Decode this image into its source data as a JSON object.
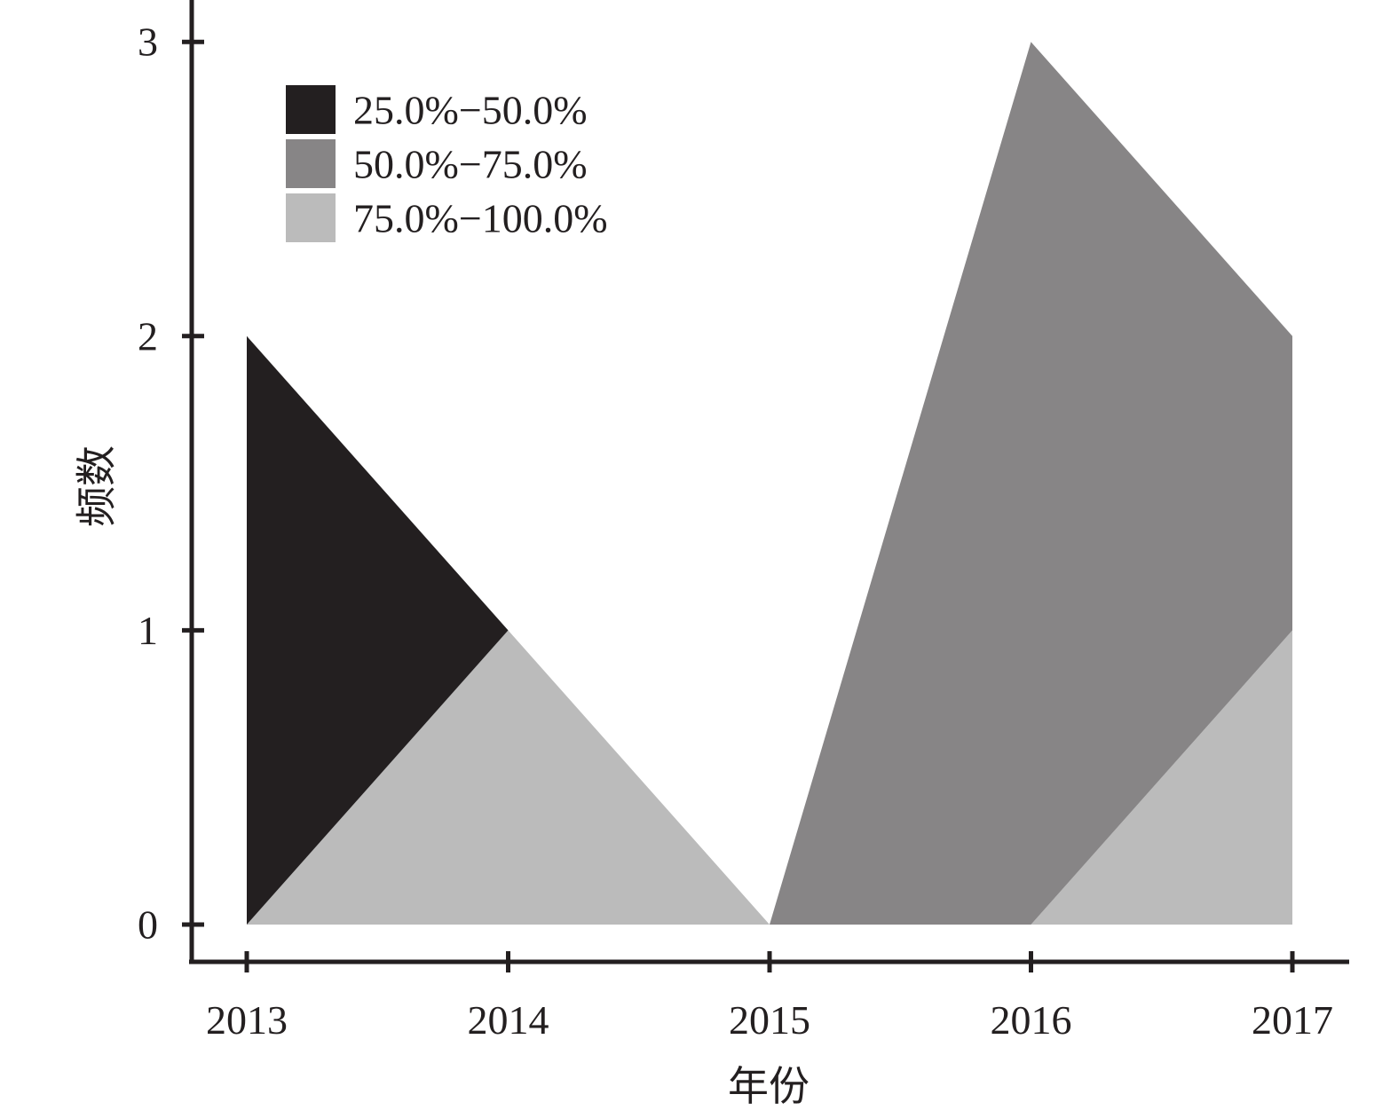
{
  "chart_data": {
    "type": "area",
    "categories": [
      "2013",
      "2014",
      "2015",
      "2016",
      "2017"
    ],
    "series": [
      {
        "name": "25.0%−50.0%",
        "values": [
          2,
          0,
          0,
          0,
          0
        ],
        "color": "#231f20"
      },
      {
        "name": "50.0%−75.0%",
        "values": [
          0,
          0,
          0,
          3,
          1
        ],
        "color": "#878586"
      },
      {
        "name": "75.0%−100.0%",
        "values": [
          0,
          1,
          0,
          0,
          1
        ],
        "color": "#bbbbbb"
      }
    ],
    "stack_order_bottom_to_top": [
      "75.0%−100.0%",
      "25.0%−50.0%",
      "50.0%−75.0%"
    ],
    "xlabel": "年份",
    "ylabel": "频数",
    "yticks": [
      "0",
      "1",
      "2",
      "3"
    ],
    "ylim": [
      0,
      3
    ],
    "legend_position": "top-left",
    "grid": false
  }
}
